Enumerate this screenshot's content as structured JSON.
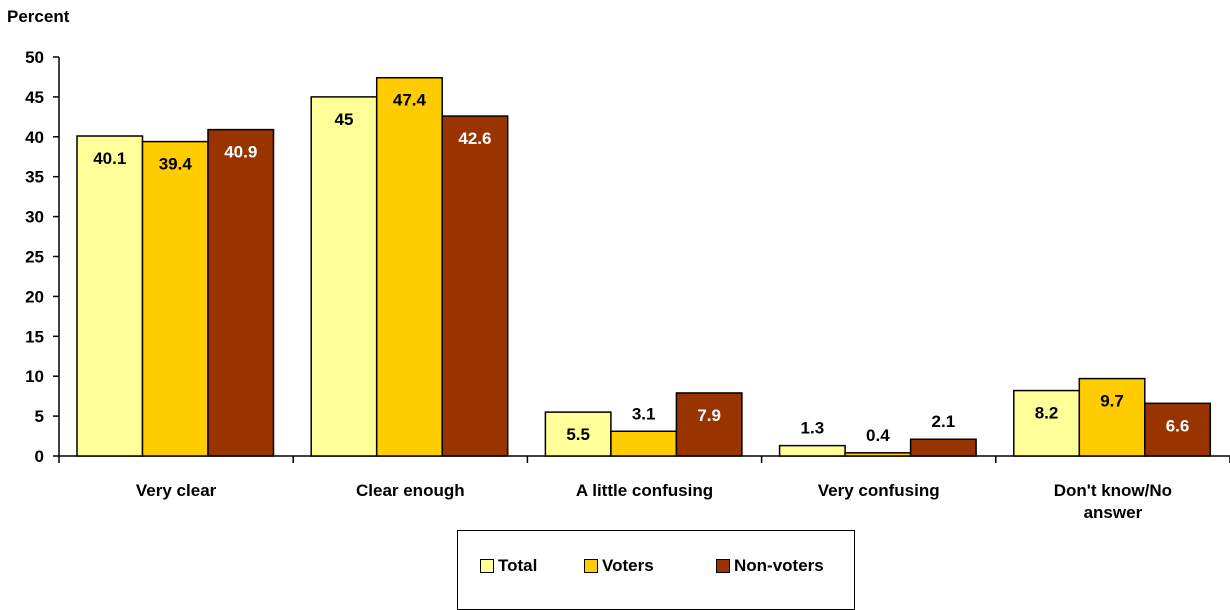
{
  "chart_data": {
    "type": "bar",
    "ylabel": "Percent",
    "xlabel": "",
    "ylim": [
      0,
      50
    ],
    "yticks": [
      0,
      5,
      10,
      15,
      20,
      25,
      30,
      35,
      40,
      45,
      50
    ],
    "grid": false,
    "legend_position": "bottom-center",
    "categories": [
      "Very clear",
      "Clear enough",
      "A little confusing",
      "Very confusing",
      "Don't know/No answer"
    ],
    "series": [
      {
        "name": "Total",
        "color": "#FFFF99",
        "values": [
          40.1,
          45,
          5.5,
          1.3,
          8.2
        ],
        "labels": [
          "40.1",
          "45",
          "5.5",
          "1.3",
          "8.2"
        ]
      },
      {
        "name": "Voters",
        "color": "#FFCC00",
        "values": [
          39.4,
          47.4,
          3.1,
          0.4,
          9.7
        ],
        "labels": [
          "39.4",
          "47.4",
          "3.1",
          "0.4",
          "9.7"
        ]
      },
      {
        "name": "Non-voters",
        "color": "#993300",
        "values": [
          40.9,
          42.6,
          7.9,
          2.1,
          6.6
        ],
        "labels": [
          "40.9",
          "42.6",
          "7.9",
          "2.1",
          "6.6"
        ]
      }
    ]
  }
}
